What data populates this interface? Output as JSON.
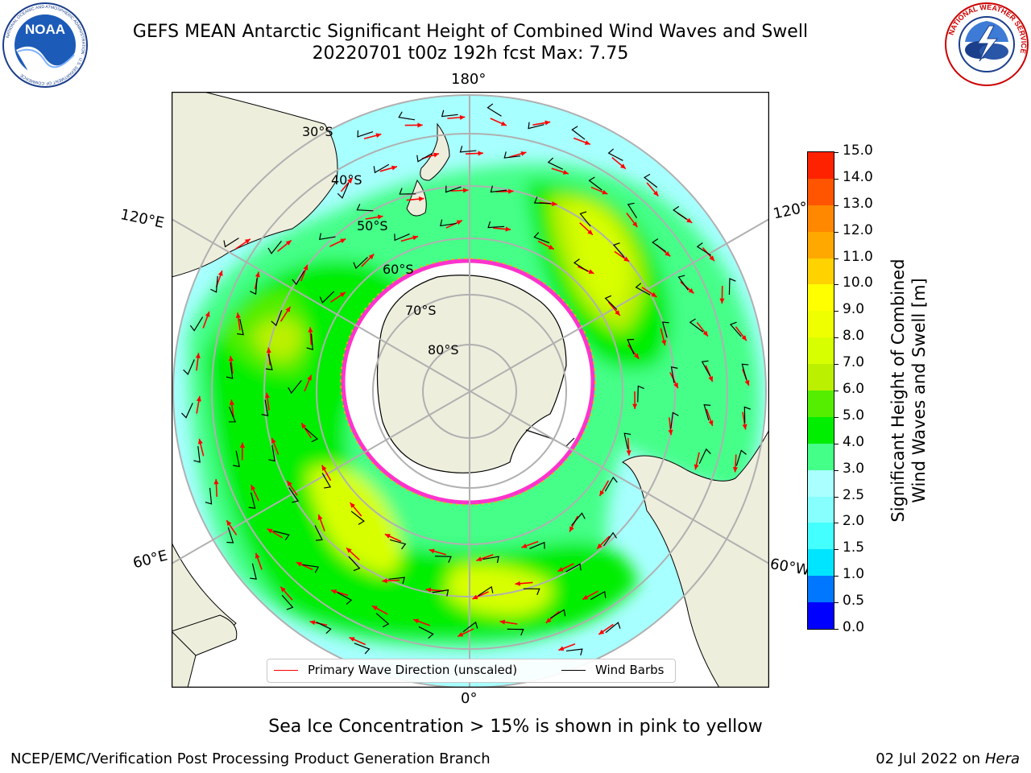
{
  "title": {
    "line1": "GEFS MEAN Antarctic Significant Height of Combined Wind Waves and Swell",
    "line2": "20220701 t00z 192h fcst   Max: 7.75"
  },
  "logos": {
    "left": "NOAA",
    "left_ring_text": "NATIONAL OCEANIC AND ATMOSPHERIC ADMINISTRATION · U.S. DEPARTMENT OF COMMERCE",
    "right_ring_text": "NATIONAL WEATHER SERVICE"
  },
  "map": {
    "projection": "south-polar-stereographic",
    "lon_labels": {
      "top": "180°",
      "bottom": "0°",
      "upper_left": "120°E",
      "lower_left": "60°E",
      "upper_right": "120°W",
      "lower_right": "60°W"
    },
    "lat_labels": [
      "30°S",
      "40°S",
      "50°S",
      "60°S",
      "70°S",
      "80°S"
    ],
    "colors": {
      "land": "#eeeedd",
      "ocean_background": "#ffffff",
      "ice_edge": "#ff33cc",
      "wave_arrow": "#ff0000",
      "wind_barb": "#000000",
      "grid": "#b0b0b0"
    }
  },
  "colorbar": {
    "label_line1": "Significant Height of Combined",
    "label_line2": "Wind Waves and Swell [m]",
    "ticks": [
      "0.0",
      "0.5",
      "1.0",
      "1.5",
      "2.0",
      "2.5",
      "3.0",
      "4.0",
      "5.0",
      "6.0",
      "7.0",
      "8.0",
      "9.0",
      "10.0",
      "11.0",
      "12.0",
      "13.0",
      "14.0",
      "15.0"
    ],
    "colors": [
      "#0000ff",
      "#0077ff",
      "#00e5ff",
      "#44ffff",
      "#88ffff",
      "#aaffff",
      "#44ff88",
      "#00ee00",
      "#55ee00",
      "#bbf000",
      "#d8ff00",
      "#f0ff00",
      "#ffff00",
      "#ffd200",
      "#ffa800",
      "#ff8800",
      "#ff5500",
      "#ff2200"
    ]
  },
  "legend": {
    "wave": "Primary Wave Direction (unscaled)",
    "wind": "Wind Barbs"
  },
  "ice_note": "Sea Ice Concentration > 15% is shown in pink to yellow",
  "footer": {
    "left": "NCEP/EMC/Verification Post Processing Product Generation Branch",
    "right_prefix": "02 Jul 2022 on ",
    "right_host": "Hera"
  }
}
